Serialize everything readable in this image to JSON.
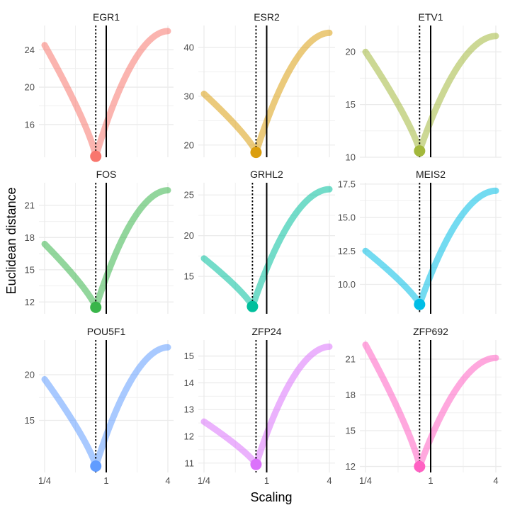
{
  "chart_data": {
    "type": "line",
    "xlabel": "Scaling",
    "ylabel": "Euclidean distance",
    "x_scale": "log2",
    "x_ticks": [
      {
        "value": 0.25,
        "label": "1/4"
      },
      {
        "value": 1,
        "label": "1"
      },
      {
        "value": 4,
        "label": "4"
      }
    ],
    "xlim": [
      0.25,
      4
    ],
    "grid": true,
    "legend": "none",
    "reference_lines": [
      {
        "x": 1,
        "style": "solid"
      },
      {
        "style": "dotted",
        "note": "at the minimum of each curve"
      }
    ],
    "panels": [
      {
        "title": "EGR1",
        "color": "#F8766D",
        "ylim": [
          12.5,
          26.6
        ],
        "y_ticks": [
          {
            "value": 16,
            "label": "16"
          },
          {
            "value": 20,
            "label": "20"
          },
          {
            "value": 24,
            "label": "24"
          }
        ],
        "min_x": 0.79,
        "min_y": 12.6,
        "points": [
          [
            0.25,
            24.5
          ],
          [
            0.79,
            12.6
          ],
          [
            4,
            26.0
          ]
        ]
      },
      {
        "title": "ESR2",
        "color": "#DB9E0E",
        "ylim": [
          17.5,
          44.5
        ],
        "y_ticks": [
          {
            "value": 20,
            "label": "20"
          },
          {
            "value": 30,
            "label": "30"
          },
          {
            "value": 40,
            "label": "40"
          }
        ],
        "min_x": 0.79,
        "min_y": 18.5,
        "points": [
          [
            0.25,
            30.5
          ],
          [
            0.79,
            18.5
          ],
          [
            4,
            43.0
          ]
        ]
      },
      {
        "title": "ETV1",
        "color": "#A3B83C",
        "ylim": [
          10,
          22.5
        ],
        "y_ticks": [
          {
            "value": 10,
            "label": "10"
          },
          {
            "value": 15,
            "label": "15"
          },
          {
            "value": 20,
            "label": "20"
          }
        ],
        "min_x": 0.79,
        "min_y": 10.6,
        "points": [
          [
            0.25,
            20.0
          ],
          [
            0.79,
            10.6
          ],
          [
            4,
            21.5
          ]
        ]
      },
      {
        "title": "FOS",
        "color": "#39B54A",
        "ylim": [
          10.9,
          23.1
        ],
        "y_ticks": [
          {
            "value": 12,
            "label": "12"
          },
          {
            "value": 15,
            "label": "15"
          },
          {
            "value": 18,
            "label": "18"
          },
          {
            "value": 21,
            "label": "21"
          }
        ],
        "min_x": 0.79,
        "min_y": 11.5,
        "points": [
          [
            0.25,
            17.4
          ],
          [
            0.79,
            11.5
          ],
          [
            4,
            22.4
          ]
        ]
      },
      {
        "title": "GRHL2",
        "color": "#00BF9C",
        "ylim": [
          10.4,
          26.5
        ],
        "y_ticks": [
          {
            "value": 15,
            "label": "15"
          },
          {
            "value": 20,
            "label": "20"
          },
          {
            "value": 25,
            "label": "25"
          }
        ],
        "min_x": 0.73,
        "min_y": 11.3,
        "points": [
          [
            0.25,
            17.2
          ],
          [
            0.73,
            11.3
          ],
          [
            4,
            25.7
          ]
        ]
      },
      {
        "title": "MEIS2",
        "color": "#00BDE6",
        "ylim": [
          7.8,
          17.6
        ],
        "y_ticks": [
          {
            "value": 10.0,
            "label": "10.0"
          },
          {
            "value": 12.5,
            "label": "12.5"
          },
          {
            "value": 15.0,
            "label": "15.0"
          },
          {
            "value": 17.5,
            "label": "17.5"
          }
        ],
        "min_x": 0.79,
        "min_y": 8.5,
        "points": [
          [
            0.25,
            12.5
          ],
          [
            0.79,
            8.5
          ],
          [
            4,
            17.0
          ]
        ]
      },
      {
        "title": "POU5F1",
        "color": "#619CFF",
        "ylim": [
          9.3,
          23.8
        ],
        "y_ticks": [
          {
            "value": 15,
            "label": "15"
          },
          {
            "value": 20,
            "label": "20"
          }
        ],
        "min_x": 0.79,
        "min_y": 10.0,
        "points": [
          [
            0.25,
            19.5
          ],
          [
            0.79,
            10.0
          ],
          [
            4,
            23.0
          ]
        ]
      },
      {
        "title": "ZFP24",
        "color": "#DB72FB",
        "ylim": [
          10.65,
          15.6
        ],
        "y_ticks": [
          {
            "value": 11,
            "label": "11"
          },
          {
            "value": 12,
            "label": "12"
          },
          {
            "value": 13,
            "label": "13"
          },
          {
            "value": 14,
            "label": "14"
          },
          {
            "value": 15,
            "label": "15"
          }
        ],
        "min_x": 0.79,
        "min_y": 10.95,
        "points": [
          [
            0.25,
            12.55
          ],
          [
            0.79,
            10.95
          ],
          [
            4,
            15.35
          ]
        ]
      },
      {
        "title": "ZFP692",
        "color": "#FF61C3",
        "ylim": [
          11.5,
          22.6
        ],
        "y_ticks": [
          {
            "value": 12,
            "label": "12"
          },
          {
            "value": 15,
            "label": "15"
          },
          {
            "value": 18,
            "label": "18"
          },
          {
            "value": 21,
            "label": "21"
          }
        ],
        "min_x": 0.79,
        "min_y": 12.0,
        "points": [
          [
            0.25,
            22.2
          ],
          [
            0.79,
            12.0
          ],
          [
            4,
            21.1
          ]
        ]
      }
    ]
  }
}
